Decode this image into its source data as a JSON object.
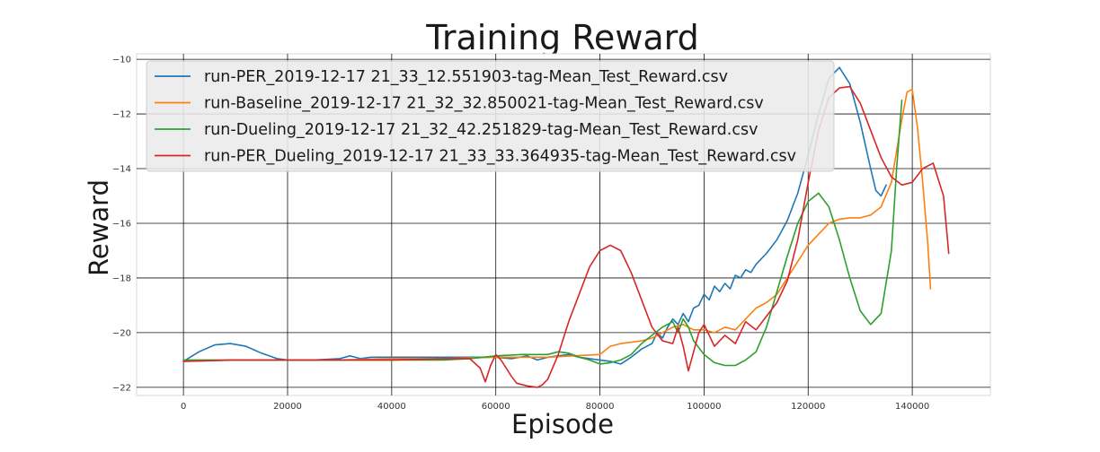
{
  "chart_data": {
    "type": "line",
    "title": "Training Reward",
    "xlabel": "Episode",
    "ylabel": "Reward",
    "xlim": [
      -9000,
      155000
    ],
    "ylim": [
      -22.3,
      -9.8
    ],
    "xticks": [
      0,
      20000,
      40000,
      60000,
      80000,
      100000,
      120000,
      140000
    ],
    "yticks": [
      -22,
      -20,
      -18,
      -16,
      -14,
      -12,
      -10
    ],
    "grid": true,
    "legend_position": "top-left",
    "series": [
      {
        "name": "run-PER_2019-12-17 21_33_12.551903-tag-Mean_Test_Reward.csv",
        "color": "#1f77b4",
        "x": [
          0,
          3000,
          6000,
          9000,
          12000,
          15000,
          18000,
          20000,
          25000,
          30000,
          32000,
          34000,
          36000,
          40000,
          45000,
          50000,
          55000,
          60000,
          63000,
          66000,
          68000,
          70000,
          72000,
          74000,
          76000,
          78000,
          80000,
          82000,
          84000,
          86000,
          88000,
          90000,
          91000,
          92000,
          93000,
          94000,
          95000,
          96000,
          97000,
          98000,
          99000,
          100000,
          101000,
          102000,
          103000,
          104000,
          105000,
          106000,
          107000,
          108000,
          109000,
          110000,
          112000,
          114000,
          116000,
          118000,
          120000,
          122000,
          124000,
          126000,
          128000,
          130000,
          132000,
          133000,
          134000,
          135000
        ],
        "y": [
          -21.05,
          -20.7,
          -20.45,
          -20.4,
          -20.5,
          -20.75,
          -20.95,
          -21.0,
          -21.0,
          -20.95,
          -20.85,
          -20.95,
          -20.9,
          -20.9,
          -20.9,
          -20.9,
          -20.9,
          -20.9,
          -20.95,
          -20.85,
          -21.0,
          -20.9,
          -20.85,
          -20.8,
          -20.9,
          -20.95,
          -21.0,
          -21.05,
          -21.15,
          -20.9,
          -20.6,
          -20.4,
          -20.0,
          -20.2,
          -19.8,
          -19.5,
          -19.7,
          -19.3,
          -19.6,
          -19.1,
          -19.0,
          -18.6,
          -18.8,
          -18.3,
          -18.5,
          -18.2,
          -18.4,
          -17.9,
          -18.0,
          -17.7,
          -17.8,
          -17.5,
          -17.1,
          -16.6,
          -15.9,
          -14.9,
          -13.5,
          -12.0,
          -10.7,
          -10.3,
          -10.9,
          -12.3,
          -14.0,
          -14.8,
          -15.0,
          -14.6
        ]
      },
      {
        "name": "run-Baseline_2019-12-17 21_32_32.850021-tag-Mean_Test_Reward.csv",
        "color": "#ff7f0e",
        "x": [
          0,
          10000,
          20000,
          30000,
          40000,
          50000,
          60000,
          70000,
          80000,
          82000,
          84000,
          86000,
          88000,
          90000,
          92000,
          94000,
          96000,
          98000,
          100000,
          102000,
          104000,
          106000,
          108000,
          110000,
          112000,
          114000,
          116000,
          118000,
          120000,
          122000,
          124000,
          126000,
          128000,
          130000,
          132000,
          134000,
          136000,
          138000,
          139000,
          140000,
          141000,
          142000,
          143000,
          143500
        ],
        "y": [
          -21.05,
          -21.0,
          -21.0,
          -21.0,
          -20.95,
          -20.95,
          -20.9,
          -20.9,
          -20.8,
          -20.5,
          -20.4,
          -20.35,
          -20.3,
          -20.2,
          -20.0,
          -19.8,
          -19.7,
          -19.9,
          -19.9,
          -20.0,
          -19.8,
          -19.9,
          -19.5,
          -19.1,
          -18.9,
          -18.6,
          -18.0,
          -17.4,
          -16.8,
          -16.4,
          -16.0,
          -15.85,
          -15.8,
          -15.8,
          -15.7,
          -15.4,
          -14.5,
          -12.2,
          -11.2,
          -11.1,
          -12.5,
          -14.5,
          -16.8,
          -18.4
        ]
      },
      {
        "name": "run-Dueling_2019-12-17 21_32_42.251829-tag-Mean_Test_Reward.csv",
        "color": "#2ca02c",
        "x": [
          0,
          10000,
          20000,
          30000,
          40000,
          50000,
          55000,
          60000,
          65000,
          70000,
          72000,
          74000,
          76000,
          78000,
          80000,
          82000,
          84000,
          86000,
          88000,
          90000,
          92000,
          94000,
          95000,
          96000,
          97000,
          98000,
          100000,
          102000,
          104000,
          106000,
          108000,
          110000,
          112000,
          114000,
          116000,
          118000,
          120000,
          122000,
          124000,
          126000,
          128000,
          130000,
          132000,
          134000,
          136000,
          137000,
          138000
        ],
        "y": [
          -21.0,
          -21.0,
          -21.0,
          -21.0,
          -21.0,
          -21.0,
          -20.95,
          -20.85,
          -20.8,
          -20.8,
          -20.7,
          -20.75,
          -20.9,
          -21.0,
          -21.15,
          -21.1,
          -21.0,
          -20.8,
          -20.4,
          -20.1,
          -19.8,
          -19.6,
          -20.0,
          -19.5,
          -19.8,
          -20.3,
          -20.8,
          -21.1,
          -21.2,
          -21.2,
          -21.0,
          -20.7,
          -19.8,
          -18.5,
          -17.2,
          -16.0,
          -15.2,
          -14.9,
          -15.4,
          -16.6,
          -18.0,
          -19.2,
          -19.7,
          -19.3,
          -17.0,
          -14.0,
          -11.5
        ]
      },
      {
        "name": "run-PER_Dueling_2019-12-17 21_33_33.364935-tag-Mean_Test_Reward.csv",
        "color": "#d62728",
        "x": [
          0,
          10000,
          20000,
          30000,
          40000,
          50000,
          55000,
          57000,
          58000,
          59000,
          60000,
          61000,
          62000,
          63000,
          64000,
          66000,
          68000,
          69000,
          70000,
          72000,
          74000,
          76000,
          78000,
          80000,
          82000,
          84000,
          86000,
          88000,
          90000,
          92000,
          94000,
          95000,
          96000,
          97000,
          98000,
          99000,
          100000,
          102000,
          104000,
          106000,
          108000,
          110000,
          112000,
          114000,
          116000,
          118000,
          120000,
          122000,
          124000,
          126000,
          128000,
          130000,
          132000,
          134000,
          136000,
          138000,
          140000,
          142000,
          144000,
          146000,
          147000
        ],
        "y": [
          -21.05,
          -21.0,
          -21.0,
          -21.0,
          -21.0,
          -20.95,
          -20.95,
          -21.3,
          -21.8,
          -21.2,
          -20.8,
          -21.0,
          -21.3,
          -21.6,
          -21.85,
          -21.95,
          -22.0,
          -21.9,
          -21.7,
          -20.8,
          -19.6,
          -18.6,
          -17.6,
          -17.0,
          -16.8,
          -17.0,
          -17.8,
          -18.8,
          -19.8,
          -20.3,
          -20.4,
          -19.8,
          -20.5,
          -21.4,
          -20.7,
          -20.0,
          -19.7,
          -20.5,
          -20.1,
          -20.4,
          -19.6,
          -19.9,
          -19.4,
          -18.9,
          -18.1,
          -16.6,
          -14.5,
          -12.6,
          -11.4,
          -11.05,
          -11.0,
          -11.6,
          -12.6,
          -13.6,
          -14.3,
          -14.6,
          -14.5,
          -14.0,
          -13.8,
          -15.0,
          -17.1
        ]
      }
    ]
  }
}
